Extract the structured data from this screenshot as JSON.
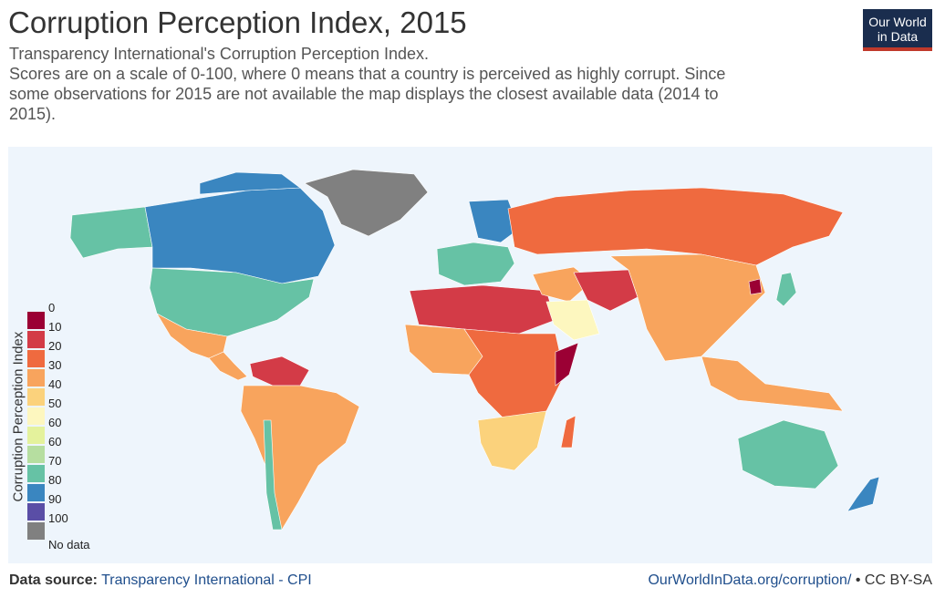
{
  "header": {
    "title": "Corruption Perception Index, 2015",
    "subtitle_lines": [
      "Transparency International's Corruption Perception Index.",
      "Scores are on a scale of 0-100, where 0 means that a country is perceived as highly corrupt. Since",
      "some observations for 2015 are not available the map displays the closest available data (2014 to",
      "2015)."
    ]
  },
  "logo": {
    "line1": "Our World",
    "line2": "in Data"
  },
  "legend": {
    "title": "Corruption Perception Index",
    "bins": [
      {
        "label": "0",
        "color": "#9b0034"
      },
      {
        "label": "10",
        "color": "#d33b47"
      },
      {
        "label": "20",
        "color": "#ef6a3f"
      },
      {
        "label": "30",
        "color": "#f8a45d"
      },
      {
        "label": "40",
        "color": "#fbd27c"
      },
      {
        "label": "50",
        "color": "#fdf7bf"
      },
      {
        "label": "60",
        "color": "#e4f29c"
      },
      {
        "label": "60",
        "color": "#b6dea0"
      },
      {
        "label": "70",
        "color": "#66c2a5"
      },
      {
        "label": "80",
        "color": "#3a86c0"
      },
      {
        "label": "90",
        "color": "#5a4ea6"
      },
      {
        "label": "100",
        "color": "#808080"
      },
      {
        "label": "No data",
        "color": ""
      }
    ]
  },
  "map": {
    "ocean_color": "#eef5fc",
    "regions": [
      {
        "name": "canada",
        "color": "#3a86c0"
      },
      {
        "name": "alaska",
        "color": "#66c2a5"
      },
      {
        "name": "usa",
        "color": "#66c2a5"
      },
      {
        "name": "greenland",
        "color": "#808080"
      },
      {
        "name": "mexico",
        "color": "#f8a45d"
      },
      {
        "name": "central-america",
        "color": "#f8a45d"
      },
      {
        "name": "venezuela",
        "color": "#d33b47"
      },
      {
        "name": "south-america",
        "color": "#f8a45d"
      },
      {
        "name": "chile",
        "color": "#66c2a5"
      },
      {
        "name": "europe-west",
        "color": "#66c2a5"
      },
      {
        "name": "scandinavia",
        "color": "#3a86c0"
      },
      {
        "name": "russia",
        "color": "#ef6a3f"
      },
      {
        "name": "north-africa",
        "color": "#d33b47"
      },
      {
        "name": "west-africa",
        "color": "#f8a45d"
      },
      {
        "name": "central-africa",
        "color": "#ef6a3f"
      },
      {
        "name": "somalia",
        "color": "#9b0034"
      },
      {
        "name": "southern-africa",
        "color": "#fbd27c"
      },
      {
        "name": "madagascar",
        "color": "#ef6a3f"
      },
      {
        "name": "middle-east",
        "color": "#f8a45d"
      },
      {
        "name": "saudi-arabia",
        "color": "#fdf7bf"
      },
      {
        "name": "afghanistan",
        "color": "#d33b47"
      },
      {
        "name": "china-india",
        "color": "#f8a45d"
      },
      {
        "name": "north-korea",
        "color": "#9b0034"
      },
      {
        "name": "japan",
        "color": "#66c2a5"
      },
      {
        "name": "southeast-asia",
        "color": "#f8a45d"
      },
      {
        "name": "australia",
        "color": "#66c2a5"
      },
      {
        "name": "new-zealand",
        "color": "#3a86c0"
      }
    ]
  },
  "footer": {
    "source_label": "Data source:",
    "source_value": "Transparency International - CPI",
    "url": "OurWorldInData.org/corruption/",
    "license": " • CC BY-SA"
  }
}
